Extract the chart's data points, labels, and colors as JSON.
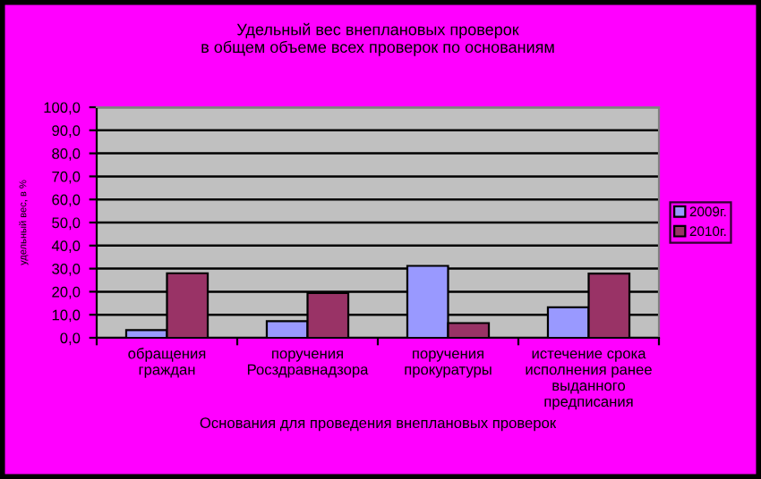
{
  "chart_data": {
    "type": "bar",
    "title": "Удельный вес внеплановых проверок\nв общем объеме всех проверок по основаниям",
    "xlabel": "Основания для проведения внеплановых проверок",
    "ylabel": "удельный вес, в %",
    "categories": [
      "обращения\nграждан",
      "поручения\nРосздравнадзора",
      "поручения\nпрокуратуры",
      "истечение срока\nисполнения ранее\nвыданного\nпредписания"
    ],
    "series": [
      {
        "name": "2009г.",
        "color": "#9999ff",
        "values": [
          3.3,
          7.2,
          31.2,
          13.2
        ]
      },
      {
        "name": "2010г.",
        "color": "#993366",
        "values": [
          28.0,
          19.4,
          6.4,
          27.9
        ]
      }
    ],
    "ylim": [
      0,
      100
    ],
    "yticks": [
      {
        "value": 0,
        "label": "0,0"
      },
      {
        "value": 10,
        "label": "10,0"
      },
      {
        "value": 20,
        "label": "20,0"
      },
      {
        "value": 30,
        "label": "30,0"
      },
      {
        "value": 40,
        "label": "40,0"
      },
      {
        "value": 50,
        "label": "50,0"
      },
      {
        "value": 60,
        "label": "60,0"
      },
      {
        "value": 70,
        "label": "70,0"
      },
      {
        "value": 80,
        "label": "80,0"
      },
      {
        "value": 90,
        "label": "90,0"
      },
      {
        "value": 100,
        "label": "100,0"
      }
    ],
    "grid": "y",
    "legend": "right"
  }
}
